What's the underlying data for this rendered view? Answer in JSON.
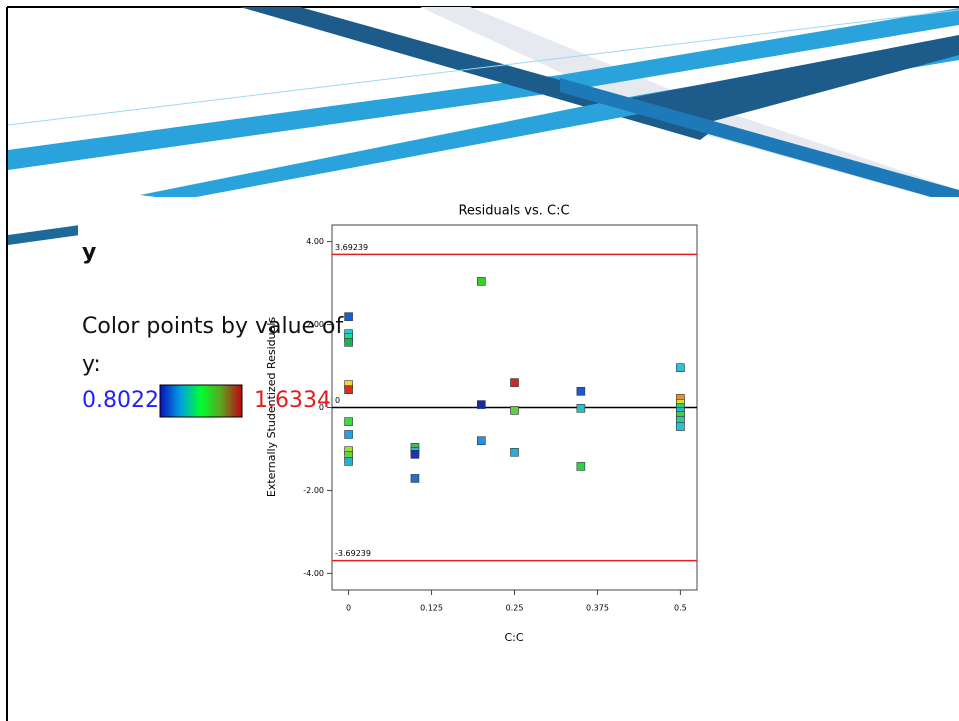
{
  "legend": {
    "title": "y",
    "text": "Color points by value of",
    "text2": "y:",
    "min": 0.8022,
    "max": 1.6334,
    "min_color": "#1f1fff",
    "max_color": "#e02020"
  },
  "chart_data": {
    "type": "scatter",
    "title": "Residuals vs. C:C",
    "x_label": "C:C",
    "y_label": "Externally Studentized Residuals",
    "x": [
      0,
      0,
      0,
      0,
      0,
      0,
      0,
      0,
      0,
      0,
      0,
      0.1,
      0.1,
      0.1,
      0.1,
      0.2,
      0.2,
      0.2,
      0.25,
      0.25,
      0.25,
      0.35,
      0.35,
      0.35,
      0.5,
      0.5,
      0.5,
      0.5,
      0.5,
      0.5,
      0.5,
      0.5
    ],
    "values": [
      2.19,
      1.78,
      1.69,
      1.57,
      0.55,
      0.43,
      -0.34,
      -0.65,
      -1.04,
      -1.16,
      -1.3,
      -0.96,
      -1.06,
      -1.13,
      -1.71,
      3.04,
      0.07,
      -0.8,
      0.6,
      -0.07,
      -1.08,
      0.39,
      -0.02,
      -1.42,
      0.96,
      0.22,
      0.1,
      0,
      -0.1,
      -0.19,
      -0.31,
      -0.46
    ],
    "colors": [
      "#1a5cd8",
      "#22c8e0",
      "#20d890",
      "#20b050",
      "#e8e020",
      "#d83020",
      "#40d840",
      "#28a0e8",
      "#a0e030",
      "#60d830",
      "#28b0d0",
      "#40c060",
      "#28b8d8",
      "#2030c0",
      "#1e70d0",
      "#38d030",
      "#1828b0",
      "#2890e0",
      "#d02828",
      "#60d040",
      "#28b0d0",
      "#1c58d0",
      "#28c0c8",
      "#30d050",
      "#20c8d8",
      "#e89030",
      "#d8e030",
      "#30d060",
      "#28b0e0",
      "#40d040",
      "#30c8a0",
      "#28c0d8"
    ],
    "xlim": [
      -0.025,
      0.525
    ],
    "ylim": [
      -4.4,
      4.4
    ],
    "xticks": [
      0,
      0.125,
      0.25,
      0.375,
      0.5
    ],
    "yticks": [
      {
        "value": -4,
        "label": "-4.00"
      },
      {
        "value": -2,
        "label": "-2.00"
      },
      0,
      {
        "value": 2,
        "label": "2.00"
      },
      {
        "value": 4,
        "label": "4.00"
      }
    ],
    "reference_lines": [
      {
        "value": 3.69239,
        "color": "#e02020"
      },
      {
        "value": -3.69239,
        "color": "#e02020"
      },
      {
        "value": 0,
        "color": "#000000"
      }
    ]
  }
}
